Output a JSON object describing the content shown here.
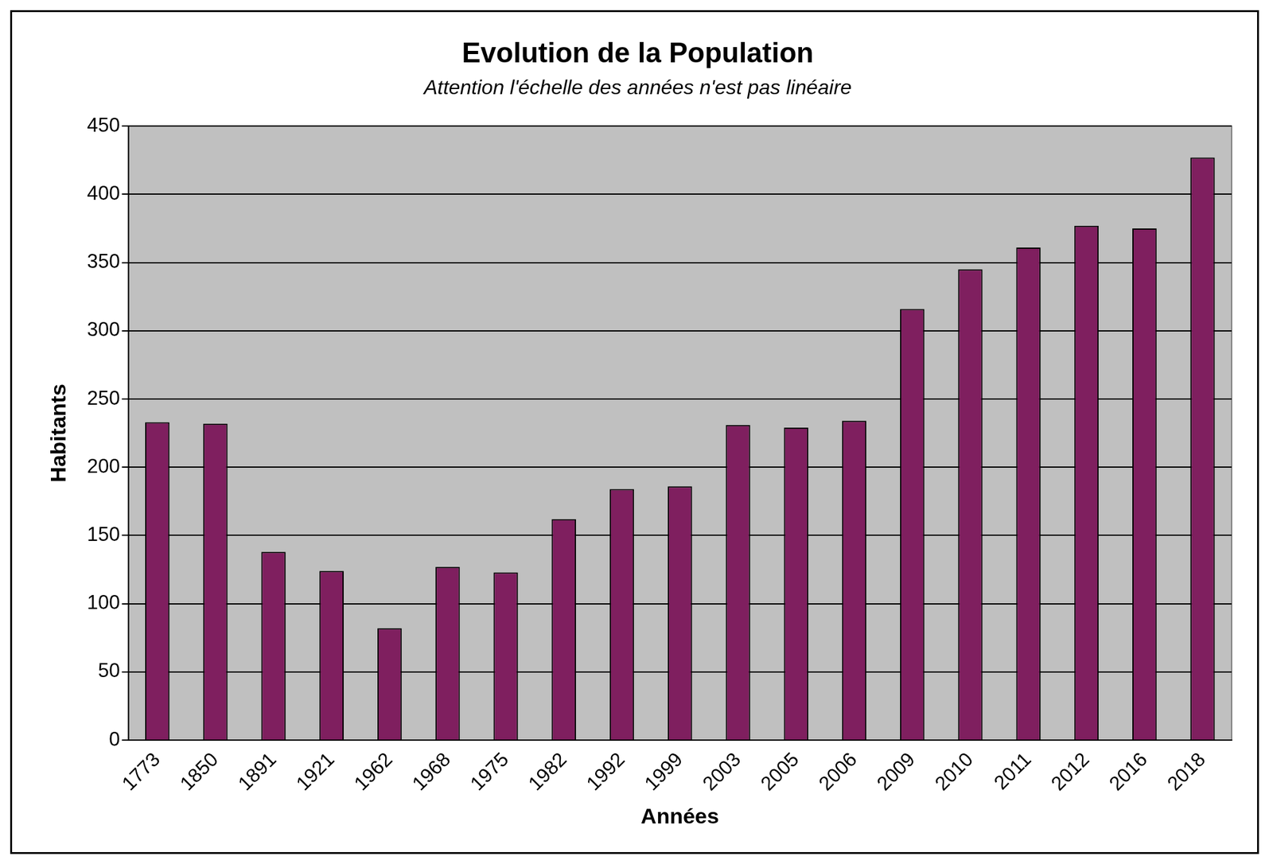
{
  "chart_data": {
    "type": "bar",
    "title": "Evolution de la Population",
    "subtitle": "Attention l'échelle des années n'est pas linéaire",
    "x_label": "Années",
    "y_label": "Habitants",
    "categories": [
      "1773",
      "1850",
      "1891",
      "1921",
      "1962",
      "1968",
      "1975",
      "1982",
      "1992",
      "1999",
      "2003",
      "2005",
      "2006",
      "2009",
      "2010",
      "2011",
      "2012",
      "2016",
      "2018"
    ],
    "values": [
      233,
      232,
      138,
      124,
      82,
      127,
      123,
      162,
      184,
      186,
      231,
      229,
      234,
      316,
      345,
      361,
      377,
      375,
      427
    ],
    "color": "#7f1f5f",
    "ylim": [
      0,
      450
    ],
    "yticks": [
      0,
      50,
      100,
      150,
      200,
      250,
      300,
      350,
      400,
      450
    ],
    "grid": true
  }
}
